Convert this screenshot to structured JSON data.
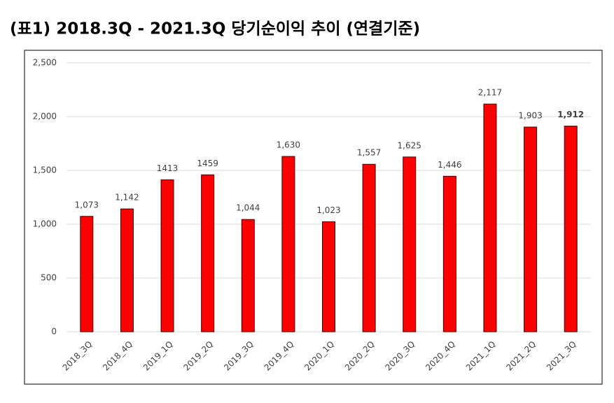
{
  "chart_data": {
    "type": "bar",
    "title": "(표1) 2018.3Q - 2021.3Q 당기순이익 추이 (연결기준)",
    "categories": [
      "2018_3Q",
      "2018_4Q",
      "2019_1Q",
      "2019_2Q",
      "2019_3Q",
      "2019_4Q",
      "2020_1Q",
      "2020_2Q",
      "2020_3Q",
      "2020_4Q",
      "2021_1Q",
      "2021_2Q",
      "2021_3Q"
    ],
    "values": [
      1073,
      1142,
      1413,
      1459,
      1044,
      1630,
      1023,
      1557,
      1625,
      1446,
      2117,
      1903,
      1912
    ],
    "value_labels": [
      "1,073",
      "1,142",
      "1413",
      "1459",
      "1,044",
      "1,630",
      "1,023",
      "1,557",
      "1,625",
      "1,446",
      "2,117",
      "1,903",
      "1,912"
    ],
    "color": "#ff0000",
    "ylim": [
      0,
      2500
    ],
    "yticks": [
      0,
      500,
      {
        "value": 1000,
        "label": "1,000"
      },
      {
        "value": 1500,
        "label": "1,500"
      },
      {
        "value": 2000,
        "label": "2,000"
      },
      {
        "value": 2500,
        "label": "2,500"
      }
    ],
    "grid": true
  }
}
